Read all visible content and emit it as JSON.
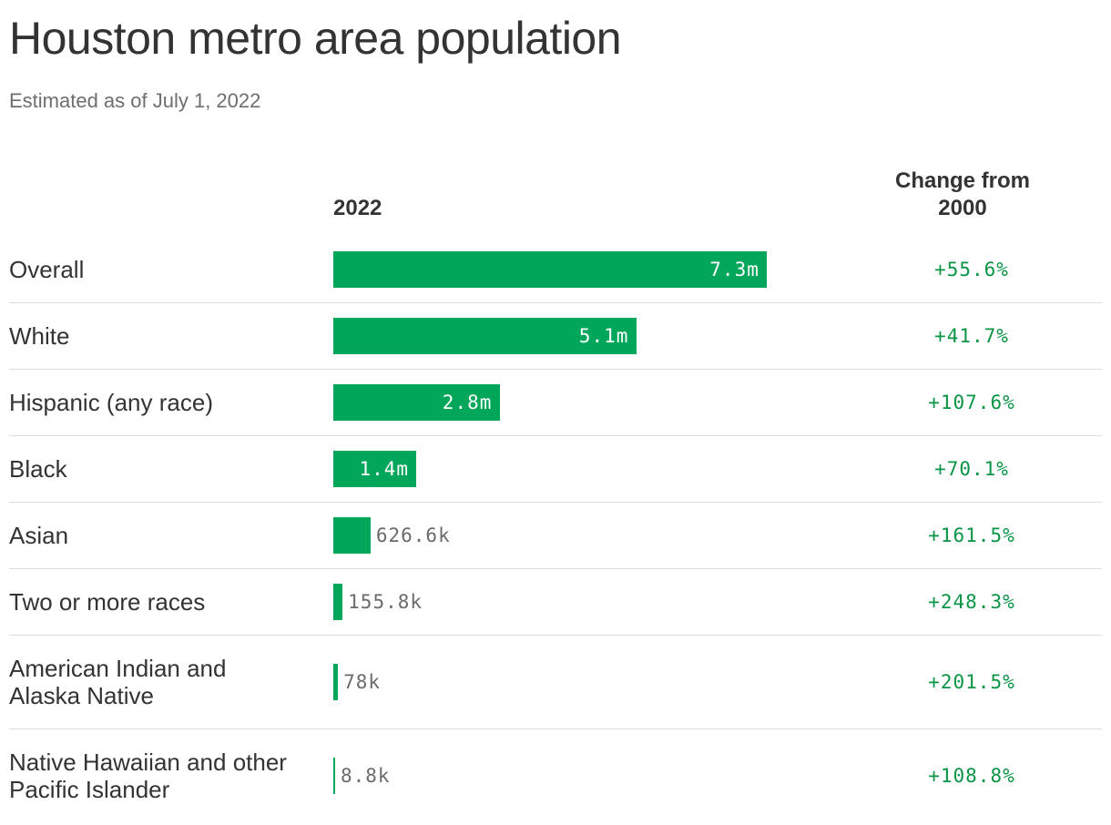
{
  "header": {
    "title": "Houston metro area population",
    "subtitle": "Estimated as of July 1, 2022"
  },
  "columns": {
    "year": "2022",
    "change": "Change from 2000"
  },
  "colors": {
    "bar": "#00a65a",
    "change_text": "#0a9446"
  },
  "chart_data": {
    "type": "bar",
    "orientation": "horizontal",
    "title": "Houston metro area population",
    "subtitle": "Estimated as of July 1, 2022",
    "xlim": [
      0,
      9200000
    ],
    "categories": [
      "Overall",
      "White",
      "Hispanic (any race)",
      "Black",
      "Asian",
      "Two or more races",
      "American Indian and Alaska Native",
      "Native Hawaiian and other Pacific Islander"
    ],
    "values": [
      7300000,
      5100000,
      2800000,
      1400000,
      626600,
      155800,
      78000,
      8800
    ],
    "value_labels": [
      "7.3m",
      "5.1m",
      "2.8m",
      "1.4m",
      "626.6k",
      "155.8k",
      "78k",
      "8.8k"
    ],
    "change_labels": [
      "+55.6%",
      "+41.7%",
      "+107.6%",
      "+70.1%",
      "+161.5%",
      "+248.3%",
      "+201.5%",
      "+108.8%"
    ],
    "change_from_2000_pct": [
      55.6,
      41.7,
      107.6,
      70.1,
      161.5,
      248.3,
      201.5,
      108.8
    ]
  }
}
